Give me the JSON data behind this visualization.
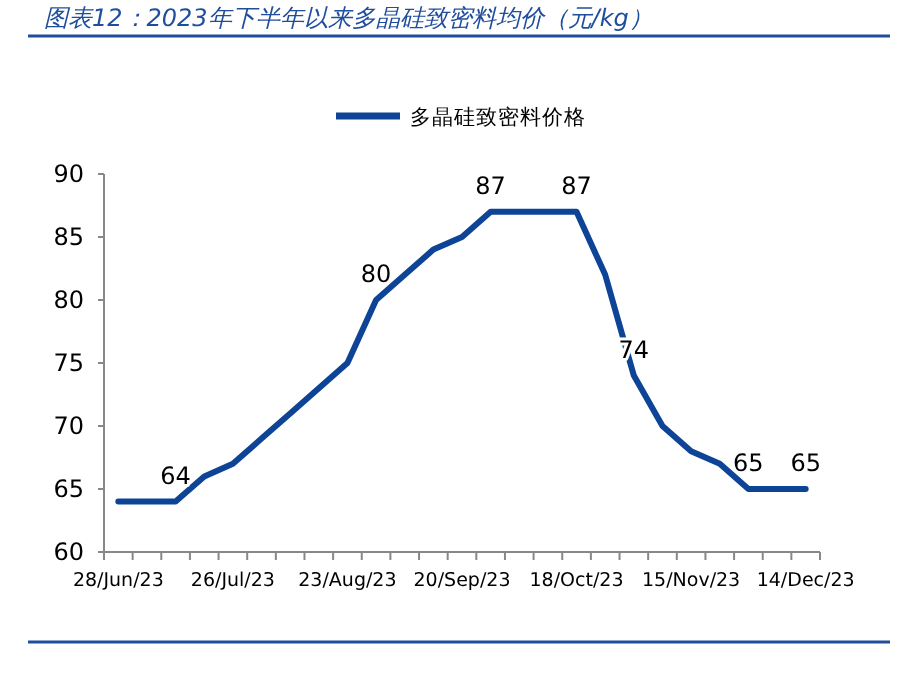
{
  "chart_data": {
    "type": "line",
    "title": "图表12：2023年下半年以来多晶硅致密料均价（元/kg）",
    "categories": [
      "28/Jun/23",
      null,
      null,
      null,
      "26/Jul/23",
      null,
      null,
      null,
      "23/Aug/23",
      null,
      null,
      null,
      "20/Sep/23",
      null,
      null,
      null,
      "18/Oct/23",
      null,
      null,
      null,
      "15/Nov/23",
      null,
      null,
      null,
      "14/Dec/23"
    ],
    "series": [
      {
        "name": "多晶硅致密料价格",
        "color": "#0e4496",
        "values": [
          64,
          64,
          64,
          66,
          67,
          69,
          71,
          73,
          75,
          80,
          82,
          84,
          85,
          87,
          87,
          87,
          87,
          82,
          74,
          70,
          68,
          67,
          65,
          65,
          65
        ],
        "value_labels": [
          null,
          null,
          "64",
          null,
          null,
          null,
          null,
          null,
          null,
          "80",
          null,
          null,
          null,
          "87",
          null,
          null,
          "87",
          null,
          "74",
          null,
          null,
          null,
          "65",
          null,
          "65"
        ]
      }
    ],
    "ylim": [
      60,
      90
    ],
    "yticks": [
      60,
      65,
      70,
      75,
      80,
      85,
      90
    ],
    "grid": false,
    "legend": "top",
    "marker": "none",
    "line_style": "solid"
  }
}
